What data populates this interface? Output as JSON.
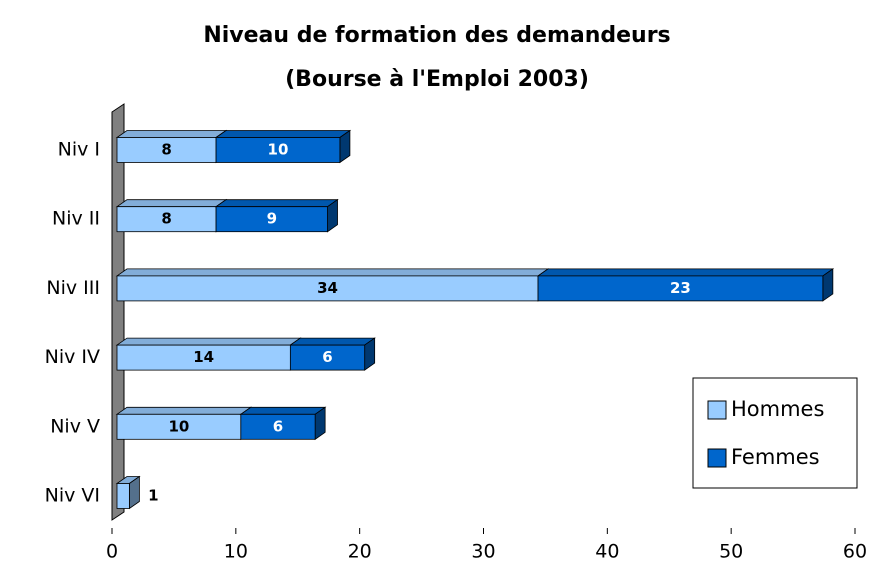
{
  "chart_data": {
    "type": "bar3d_stacked_horizontal",
    "title": "Niveau de formation des demandeurs",
    "subtitle": "(Bourse à l'Emploi 2003)",
    "categories": [
      "Niv I",
      "Niv II",
      "Niv III",
      "Niv IV",
      "Niv V",
      "Niv VI"
    ],
    "series": [
      {
        "name": "Hommes",
        "color": "#99ccff",
        "label_color": "#000000",
        "values": [
          8,
          8,
          34,
          14,
          10,
          1
        ]
      },
      {
        "name": "Femmes",
        "color": "#0066cc",
        "label_color": "#ffffff",
        "values": [
          10,
          9,
          23,
          6,
          6,
          null
        ]
      }
    ],
    "xlim": [
      0,
      60
    ],
    "xticks": [
      0,
      10,
      20,
      30,
      40,
      50,
      60
    ],
    "legend": "right"
  }
}
